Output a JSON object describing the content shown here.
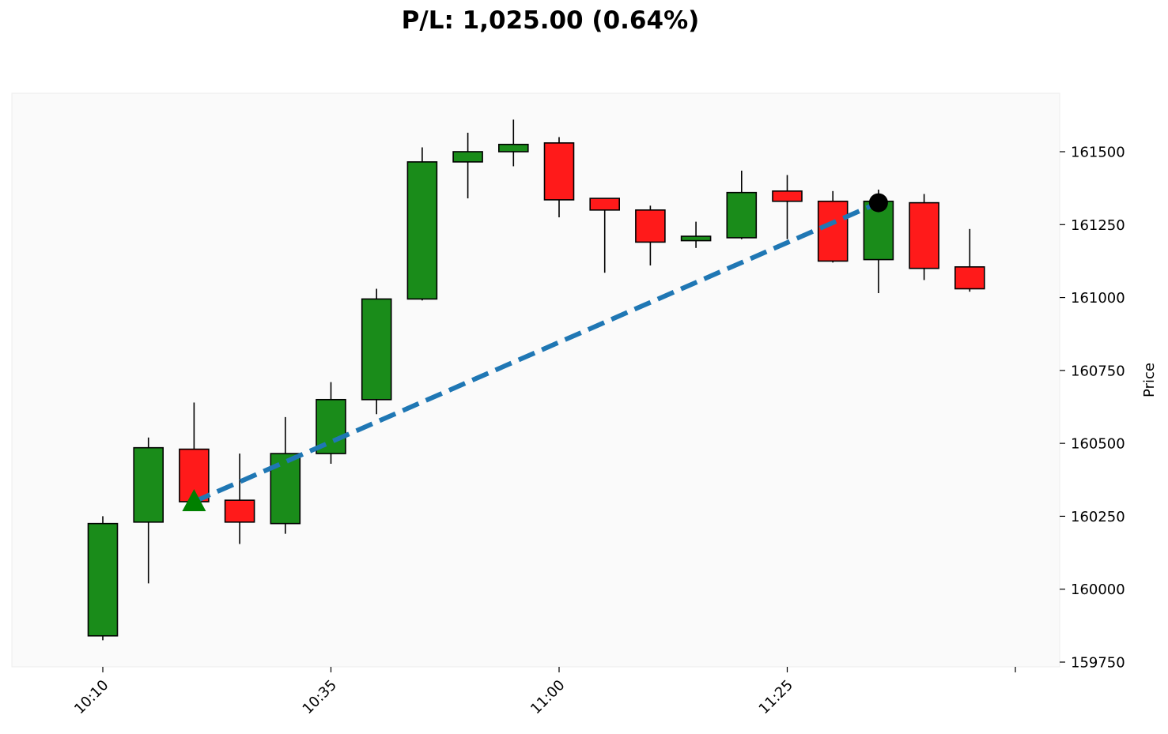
{
  "chart_data": {
    "type": "candlestick",
    "title": "P/L: 1,025.00 (0.64%)",
    "xlabel": "",
    "ylabel": "Price",
    "ylim": [
      159700,
      161700
    ],
    "y_ticks": [
      159750,
      160000,
      160250,
      160500,
      160750,
      161000,
      161250,
      161500
    ],
    "x_ticks": [
      {
        "index": 0,
        "label": "10:10"
      },
      {
        "index": 5,
        "label": "10:35"
      },
      {
        "index": 10,
        "label": "11:00"
      },
      {
        "index": 15,
        "label": "11:25"
      },
      {
        "index": 20,
        "label": ""
      }
    ],
    "grid": false,
    "colors": {
      "up": "#1a8c1a",
      "down": "#ff1a1a",
      "trade_line": "#1f77b4",
      "entry_marker": "#008000",
      "exit_marker": "#000000",
      "plot_bg": "#fafafa"
    },
    "candles": [
      {
        "open": 159840,
        "high": 160250,
        "low": 159825,
        "close": 160225
      },
      {
        "open": 160230,
        "high": 160520,
        "low": 160020,
        "close": 160485
      },
      {
        "open": 160480,
        "high": 160640,
        "low": 160300,
        "close": 160300
      },
      {
        "open": 160305,
        "high": 160465,
        "low": 160155,
        "close": 160230
      },
      {
        "open": 160225,
        "high": 160590,
        "low": 160190,
        "close": 160465
      },
      {
        "open": 160465,
        "high": 160710,
        "low": 160430,
        "close": 160650
      },
      {
        "open": 160650,
        "high": 161030,
        "low": 160600,
        "close": 160995
      },
      {
        "open": 160995,
        "high": 161515,
        "low": 160990,
        "close": 161465
      },
      {
        "open": 161465,
        "high": 161565,
        "low": 161340,
        "close": 161500
      },
      {
        "open": 161500,
        "high": 161610,
        "low": 161450,
        "close": 161525
      },
      {
        "open": 161530,
        "high": 161550,
        "low": 161275,
        "close": 161335
      },
      {
        "open": 161340,
        "high": 161340,
        "low": 161085,
        "close": 161300
      },
      {
        "open": 161300,
        "high": 161315,
        "low": 161110,
        "close": 161190
      },
      {
        "open": 161195,
        "high": 161260,
        "low": 161170,
        "close": 161210
      },
      {
        "open": 161205,
        "high": 161435,
        "low": 161200,
        "close": 161360
      },
      {
        "open": 161365,
        "high": 161420,
        "low": 161200,
        "close": 161330
      },
      {
        "open": 161330,
        "high": 161365,
        "low": 161120,
        "close": 161125
      },
      {
        "open": 161130,
        "high": 161370,
        "low": 161015,
        "close": 161330
      },
      {
        "open": 161325,
        "high": 161355,
        "low": 161060,
        "close": 161100
      },
      {
        "open": 161105,
        "high": 161235,
        "low": 161020,
        "close": 161030
      }
    ],
    "trade": {
      "entry": {
        "index": 2,
        "price": 160300
      },
      "exit": {
        "index": 17,
        "price": 161325
      }
    }
  }
}
